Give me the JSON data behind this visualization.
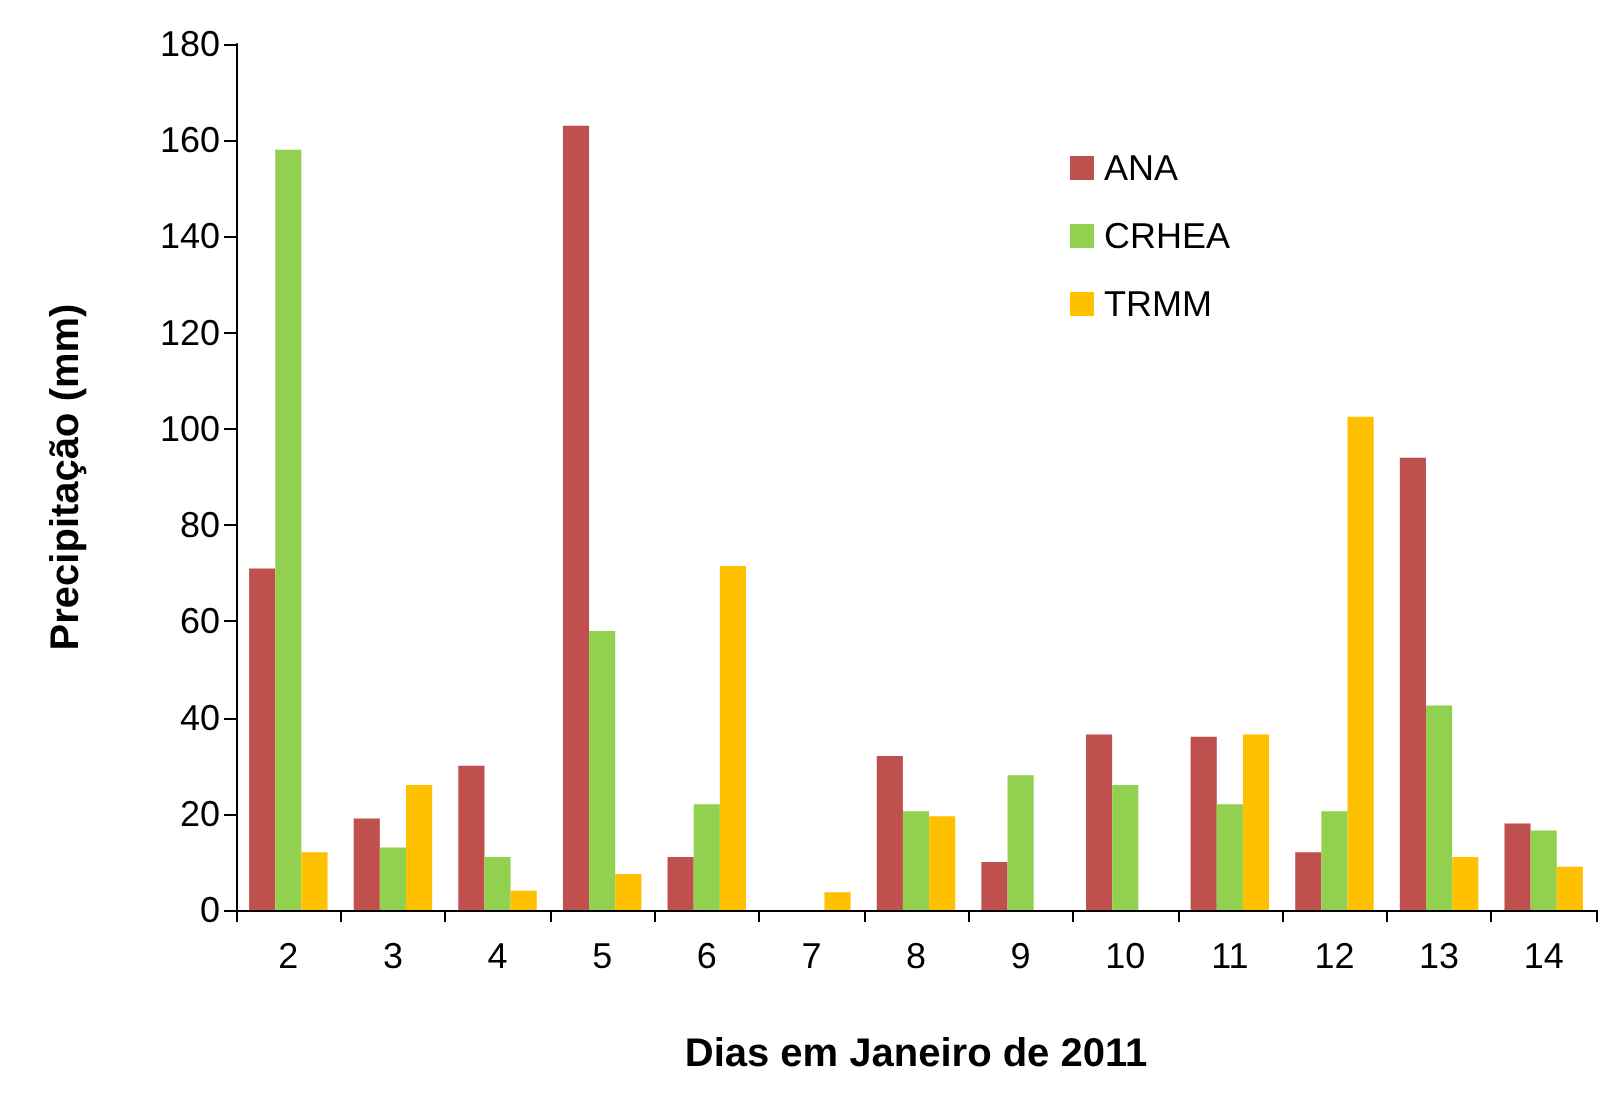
{
  "chart_data": {
    "type": "bar",
    "xlabel": "Dias em Janeiro de 2011",
    "ylabel": "Precipitação (mm)",
    "categories": [
      "2",
      "3",
      "4",
      "5",
      "6",
      "7",
      "8",
      "9",
      "10",
      "11",
      "12",
      "13",
      "14"
    ],
    "series": [
      {
        "name": "ANA",
        "color": "#c0504d",
        "values": [
          71,
          19,
          30,
          163,
          11,
          0,
          32,
          10,
          36.5,
          36,
          12,
          94,
          18
        ]
      },
      {
        "name": "CRHEA",
        "color": "#92d050",
        "values": [
          158,
          13,
          11,
          58,
          22,
          0,
          20.5,
          28,
          26,
          22,
          20.5,
          42.5,
          16.5
        ]
      },
      {
        "name": "TRMM",
        "color": "#ffc000",
        "values": [
          12,
          26,
          4,
          7.5,
          71.5,
          3.7,
          19.5,
          0,
          0,
          36.5,
          102.5,
          11,
          9
        ]
      }
    ],
    "ylim": [
      0,
      180
    ],
    "yticks": [
      0,
      20,
      40,
      60,
      80,
      100,
      120,
      140,
      160,
      180
    ],
    "grid": false,
    "legend": "top right"
  }
}
